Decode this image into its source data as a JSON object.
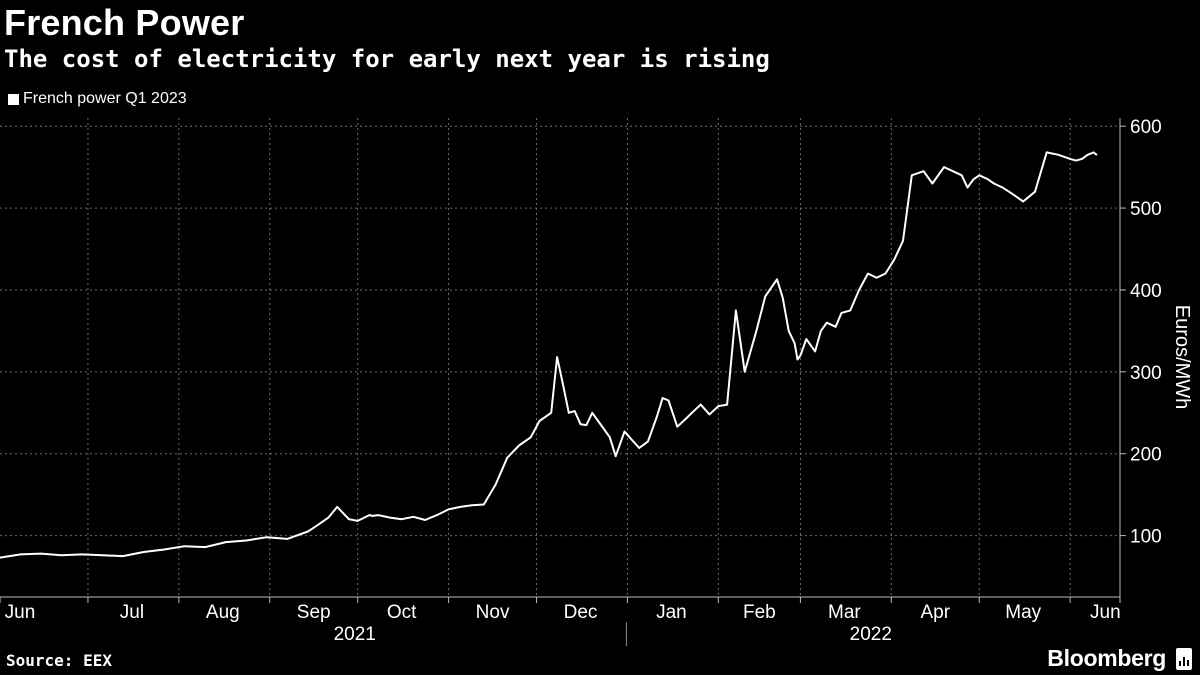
{
  "title": "French Power",
  "subtitle": "The cost of electricity for early next year is rising",
  "legend": {
    "label": "French power Q1 2023",
    "color": "#ffffff"
  },
  "source": "Source: EEX",
  "brand": "Bloomberg",
  "chart_data": {
    "type": "line",
    "title": "French Power",
    "subtitle": "The cost of electricity for early next year is rising",
    "ylabel": "Euros/MWh",
    "xlabel": "",
    "ylim": [
      25,
      610
    ],
    "yticks": [
      100,
      200,
      300,
      400,
      500,
      600
    ],
    "grid": true,
    "legend_position": "top-left",
    "x_months": [
      "Jun",
      "Jul",
      "Aug",
      "Sep",
      "Oct",
      "Nov",
      "Dec",
      "Jan",
      "Feb",
      "Mar",
      "Apr",
      "May",
      "Jun"
    ],
    "x_years": [
      "2021",
      "2022"
    ],
    "series": [
      {
        "name": "French power Q1 2023",
        "color": "#ffffff",
        "x": [
          "2021-06-01",
          "2021-06-08",
          "2021-06-15",
          "2021-06-22",
          "2021-06-29",
          "2021-07-06",
          "2021-07-13",
          "2021-07-20",
          "2021-07-27",
          "2021-08-03",
          "2021-08-10",
          "2021-08-17",
          "2021-08-24",
          "2021-08-31",
          "2021-09-07",
          "2021-09-14",
          "2021-09-17",
          "2021-09-21",
          "2021-09-24",
          "2021-09-28",
          "2021-10-01",
          "2021-10-05",
          "2021-10-06",
          "2021-10-08",
          "2021-10-12",
          "2021-10-16",
          "2021-10-20",
          "2021-10-24",
          "2021-10-28",
          "2021-11-01",
          "2021-11-05",
          "2021-11-09",
          "2021-11-13",
          "2021-11-17",
          "2021-11-21",
          "2021-11-25",
          "2021-11-29",
          "2021-12-02",
          "2021-12-06",
          "2021-12-08",
          "2021-12-10",
          "2021-12-12",
          "2021-12-14",
          "2021-12-16",
          "2021-12-18",
          "2021-12-20",
          "2021-12-21",
          "2021-12-22",
          "2021-12-24",
          "2021-12-26",
          "2021-12-28",
          "2021-12-31",
          "2022-01-03",
          "2022-01-05",
          "2022-01-08",
          "2022-01-11",
          "2022-01-13",
          "2022-01-15",
          "2022-01-18",
          "2022-01-21",
          "2022-01-23",
          "2022-01-26",
          "2022-01-29",
          "2022-02-01",
          "2022-02-04",
          "2022-02-07",
          "2022-02-10",
          "2022-02-14",
          "2022-02-17",
          "2022-02-21",
          "2022-02-23",
          "2022-02-25",
          "2022-02-27",
          "2022-02-28",
          "2022-03-01",
          "2022-03-03",
          "2022-03-06",
          "2022-03-08",
          "2022-03-10",
          "2022-03-13",
          "2022-03-15",
          "2022-03-18",
          "2022-03-21",
          "2022-03-24",
          "2022-03-27",
          "2022-03-30",
          "2022-04-02",
          "2022-04-05",
          "2022-04-08",
          "2022-04-12",
          "2022-04-15",
          "2022-04-19",
          "2022-04-22",
          "2022-04-25",
          "2022-04-27",
          "2022-04-29",
          "2022-05-01",
          "2022-05-04",
          "2022-05-06",
          "2022-05-09",
          "2022-05-12",
          "2022-05-16",
          "2022-05-20",
          "2022-05-24",
          "2022-05-28",
          "2022-06-01",
          "2022-06-03",
          "2022-06-05",
          "2022-06-07",
          "2022-06-09",
          "2022-06-10"
        ],
        "y": [
          73,
          77,
          78,
          76,
          77,
          76,
          75,
          80,
          83,
          87,
          86,
          92,
          94,
          98,
          96,
          105,
          112,
          122,
          135,
          120,
          118,
          125,
          124,
          125,
          122,
          120,
          123,
          119,
          125,
          132,
          135,
          137,
          138,
          162,
          195,
          210,
          220,
          240,
          250,
          318,
          285,
          250,
          252,
          236,
          235,
          250,
          245,
          240,
          230,
          220,
          197,
          227,
          215,
          207,
          215,
          245,
          268,
          265,
          233,
          243,
          250,
          260,
          248,
          258,
          260,
          375,
          300,
          350,
          392,
          413,
          390,
          350,
          335,
          315,
          320,
          340,
          325,
          350,
          360,
          355,
          372,
          375,
          400,
          420,
          415,
          420,
          437,
          460,
          540,
          545,
          530,
          550,
          545,
          540,
          525,
          535,
          540,
          535,
          530,
          525,
          518,
          508,
          520,
          568,
          565,
          560,
          558,
          560,
          565,
          568,
          565
        ]
      }
    ]
  }
}
